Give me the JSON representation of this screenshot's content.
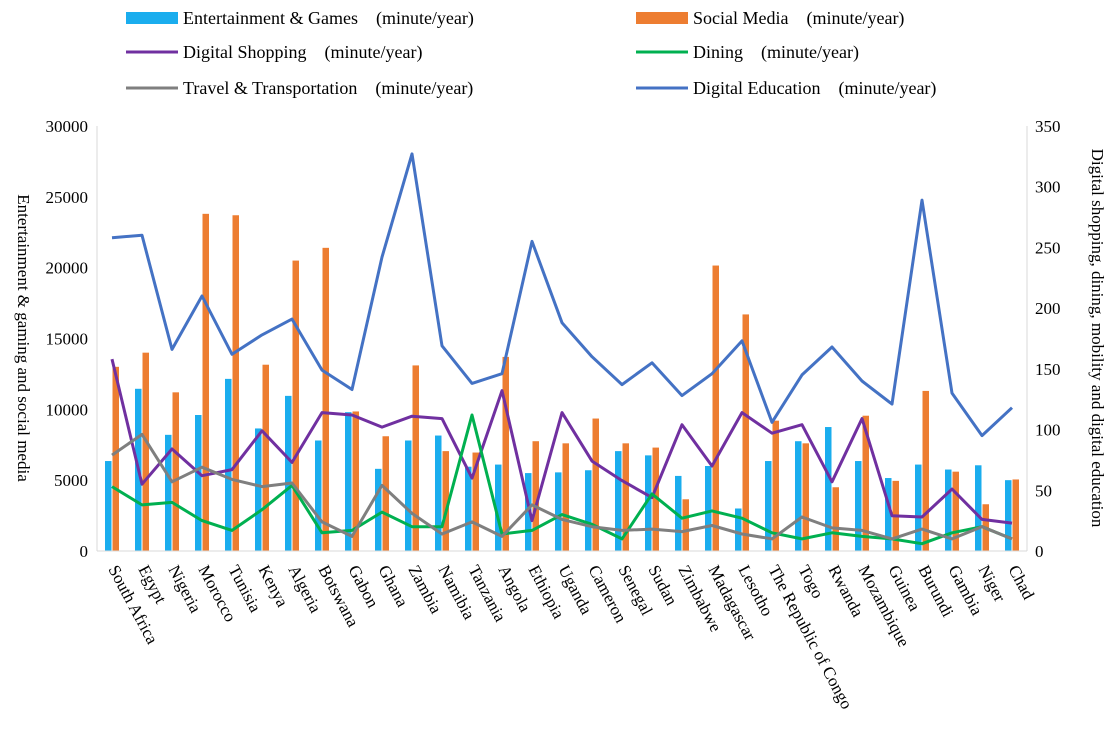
{
  "chart_data": {
    "type": "bar",
    "categories": [
      "South Africa",
      "Egypt",
      "Nigeria",
      "Morocco",
      "Tunisia",
      "Kenya",
      "Algeria",
      "Botswana",
      "Gabon",
      "Ghana",
      "Zambia",
      "Namibia",
      "Tanzania",
      "Angola",
      "Ethiopia",
      "Uganda",
      "Cameron",
      "Senegal",
      "Sudan",
      "Zimbabwe",
      "Madagascar",
      "Lesotho",
      "The Republic of Congo",
      "Togo",
      "Rwanda",
      "Mozambique",
      "Guinea",
      "Burundi",
      "Gambia",
      "Niger",
      "Chad"
    ],
    "series": [
      {
        "name": "Entertainment & Games (minute/year)",
        "type": "bar",
        "axis": "left",
        "color": "#1aadee",
        "values": [
          6350,
          11450,
          8200,
          9600,
          12150,
          8650,
          10950,
          7800,
          9800,
          5800,
          7800,
          8150,
          5950,
          6100,
          5500,
          5550,
          5700,
          7050,
          6750,
          5300,
          6000,
          3000,
          6350,
          7750,
          8750,
          6350,
          5150,
          6100,
          5750,
          6050,
          5000
        ]
      },
      {
        "name": "Social Media (minute/year)",
        "type": "bar",
        "axis": "left",
        "color": "#ed7d31",
        "values": [
          13000,
          14000,
          11200,
          23800,
          23700,
          13150,
          20500,
          21400,
          9850,
          8100,
          13100,
          7050,
          6950,
          13700,
          7750,
          7600,
          9350,
          7600,
          7300,
          3650,
          20150,
          16700,
          9200,
          7600,
          4500,
          9550,
          4950,
          11300,
          5600,
          3300,
          5050
        ]
      },
      {
        "name": "Digital Shopping (minute/year)",
        "type": "line",
        "axis": "right",
        "color": "#7030a0",
        "values": [
          158,
          55,
          84,
          62,
          67,
          99,
          73,
          114,
          112,
          102,
          111,
          109,
          60,
          132,
          25,
          114,
          74,
          58,
          44,
          104,
          70,
          114,
          97,
          104,
          57,
          109,
          29,
          28,
          51,
          26,
          23
        ]
      },
      {
        "name": "Dining (minute/year)",
        "type": "line",
        "axis": "right",
        "color": "#00b050",
        "values": [
          53,
          38,
          40,
          25,
          17,
          34,
          54,
          15,
          17,
          32,
          20,
          20,
          112,
          14,
          17,
          30,
          22,
          10,
          47,
          27,
          33,
          27,
          15,
          10,
          15,
          12,
          10,
          6,
          15,
          20,
          10
        ]
      },
      {
        "name": "Travel & Transportation (minute/year)",
        "type": "line",
        "axis": "right",
        "color": "#7f7f7f",
        "values": [
          79,
          96,
          57,
          69,
          59,
          53,
          56,
          24,
          12,
          54,
          31,
          14,
          24,
          12,
          38,
          26,
          20,
          17,
          18,
          16,
          21,
          14,
          10,
          28,
          19,
          17,
          10,
          18,
          10,
          20,
          10
        ]
      },
      {
        "name": "Digital Education (minute/year)",
        "type": "line",
        "axis": "right",
        "color": "#4472c4",
        "values": [
          258,
          260,
          166,
          210,
          162,
          178,
          191,
          149,
          133,
          242,
          327,
          169,
          138,
          146,
          255,
          188,
          160,
          137,
          155,
          128,
          146,
          173,
          106,
          145,
          168,
          140,
          121,
          289,
          130,
          95,
          118
        ]
      }
    ],
    "y_left": {
      "label": "Entertainment & gaming and social media",
      "min": 0,
      "max": 30000,
      "ticks": [
        "0",
        "5000",
        "10000",
        "15000",
        "20000",
        "25000",
        "30000"
      ]
    },
    "y_right": {
      "label": "Digital shopping, dining, mobility and digital education",
      "min": 0,
      "max": 350,
      "ticks": [
        "0",
        "50",
        "100",
        "150",
        "200",
        "250",
        "300",
        "350"
      ]
    },
    "legend": {
      "position": "top",
      "entries": [
        {
          "label": "Entertainment & Games　(minute/year)",
          "kind": "bar",
          "color": "#1aadee"
        },
        {
          "label": "Social Media　(minute/year)",
          "kind": "bar",
          "color": "#ed7d31"
        },
        {
          "label": "Digital Shopping　(minute/year)",
          "kind": "line",
          "color": "#7030a0"
        },
        {
          "label": "Dining　(minute/year)",
          "kind": "line",
          "color": "#00b050"
        },
        {
          "label": "Travel & Transportation　(minute/year)",
          "kind": "line",
          "color": "#7f7f7f"
        },
        {
          "label": "Digital Education　(minute/year)",
          "kind": "line",
          "color": "#4472c4"
        }
      ]
    },
    "grid": "none"
  }
}
